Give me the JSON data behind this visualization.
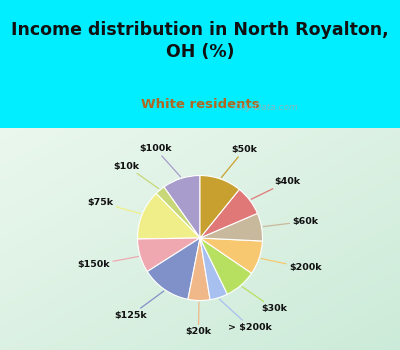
{
  "title": "Income distribution in North Royalton,\nOH (%)",
  "subtitle": "White residents",
  "title_color": "#111111",
  "subtitle_color": "#b06820",
  "background_top": "#00eeff",
  "background_chart_tl": "#e8f8f0",
  "background_chart_br": "#c0e8d8",
  "labels": [
    "$100k",
    "$10k",
    "$75k",
    "$150k",
    "$125k",
    "$20k",
    "> $200k",
    "$30k",
    "$200k",
    "$60k",
    "$40k",
    "$50k"
  ],
  "values": [
    9.5,
    2.5,
    12.5,
    8.5,
    12.5,
    5.5,
    4.5,
    8.0,
    8.5,
    7.0,
    7.5,
    10.5
  ],
  "colors": [
    "#a89ccc",
    "#c8d878",
    "#f0ee88",
    "#f0a8b0",
    "#8090c8",
    "#f0b888",
    "#a8c0f0",
    "#b8e060",
    "#f8c870",
    "#c8b89c",
    "#e07878",
    "#c8a030"
  ],
  "startangle": 90,
  "watermark": "  City-Data.com"
}
